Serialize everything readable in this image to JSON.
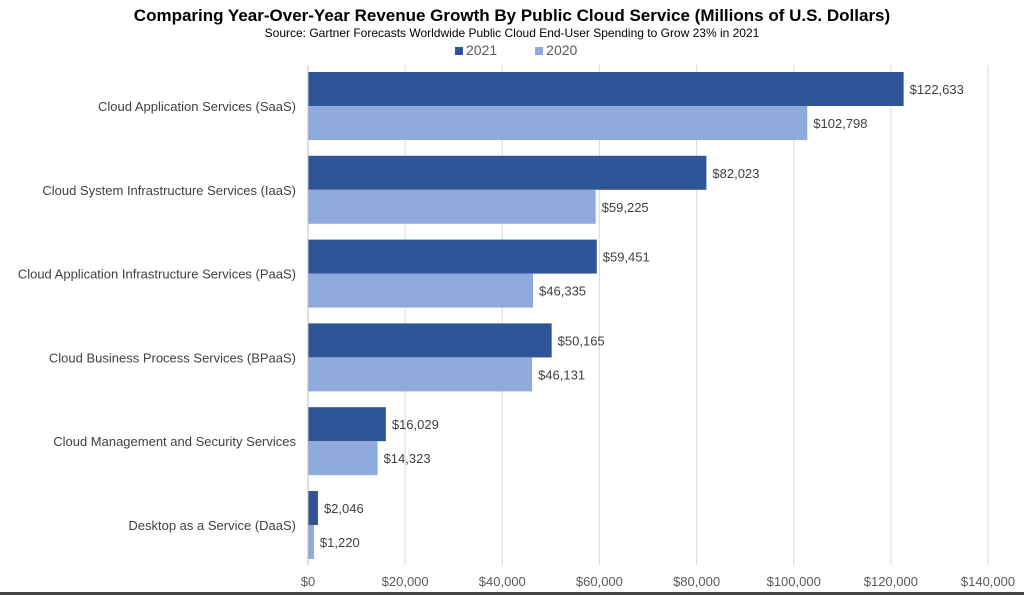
{
  "chart_data": {
    "type": "bar",
    "orientation": "horizontal",
    "title": "Comparing Year-Over-Year Revenue Growth By Public Cloud Service (Millions of U.S. Dollars)",
    "subtitle": "Source: Gartner Forecasts Worldwide Public Cloud End-User Spending to Grow 23% in 2021",
    "categories": [
      "Cloud Application Services (SaaS)",
      "Cloud System Infrastructure Services (IaaS)",
      "Cloud Application Infrastructure Services (PaaS)",
      "Cloud Business Process Services (BPaaS)",
      "Cloud Management and Security Services",
      "Desktop as a Service (DaaS)"
    ],
    "series": [
      {
        "name": "2021",
        "color": "#2f5597",
        "values": [
          122633,
          82023,
          59451,
          50165,
          16029,
          2046
        ],
        "labels": [
          "$122,633",
          "$82,023",
          "$59,451",
          "$50,165",
          "$16,029",
          "$2,046"
        ]
      },
      {
        "name": "2020",
        "color": "#8faadc",
        "values": [
          102798,
          59225,
          46335,
          46131,
          14323,
          1220
        ],
        "labels": [
          "$102,798",
          "$59,225",
          "$46,335",
          "$46,131",
          "$14,323",
          "$1,220"
        ]
      }
    ],
    "xlim": [
      0,
      140000
    ],
    "xticks": [
      0,
      20000,
      40000,
      60000,
      80000,
      100000,
      120000,
      140000
    ],
    "xtick_labels": [
      "$0",
      "$20,000",
      "$40,000",
      "$60,000",
      "$80,000",
      "$100,000",
      "$120,000",
      "$140,000"
    ],
    "grid": "vertical",
    "legend_position": "top"
  }
}
